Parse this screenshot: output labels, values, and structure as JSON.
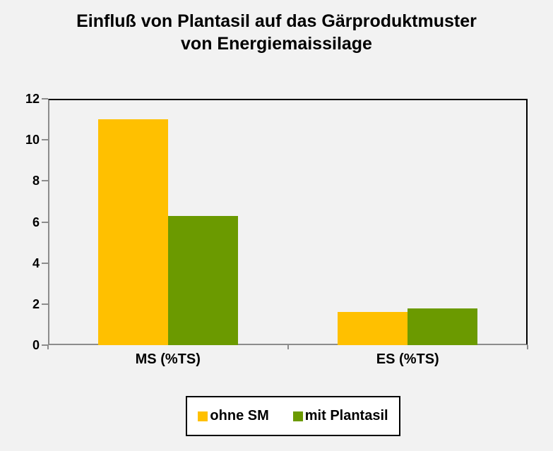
{
  "colors": {
    "background": "#F2F2F2",
    "axis_gray": "#8C8C8C",
    "frame_black": "#000000",
    "text": "#000000",
    "legend_background": "#FFFFFF",
    "legend_border": "#000000"
  },
  "chart_data": {
    "type": "bar",
    "title": "Einfluß von Plantasil auf das Gärproduktmuster von Energiemaissilage",
    "title_lines": [
      "Einfluß von Plantasil auf das Gärproduktmuster",
      "von Energiemaissilage"
    ],
    "categories": [
      "MS (%TS)",
      "ES (%TS)"
    ],
    "series": [
      {
        "name": "ohne SM",
        "color": "#FFC000",
        "values": [
          11.0,
          1.6
        ]
      },
      {
        "name": "mit Plantasil",
        "color": "#6B9A00",
        "values": [
          6.3,
          1.8
        ]
      }
    ],
    "xlabel": "",
    "ylabel": "",
    "ylim": [
      0,
      12
    ],
    "yticks": [
      0,
      2,
      4,
      6,
      8,
      10,
      12
    ],
    "grid": false,
    "legend_position": "bottom-center"
  }
}
